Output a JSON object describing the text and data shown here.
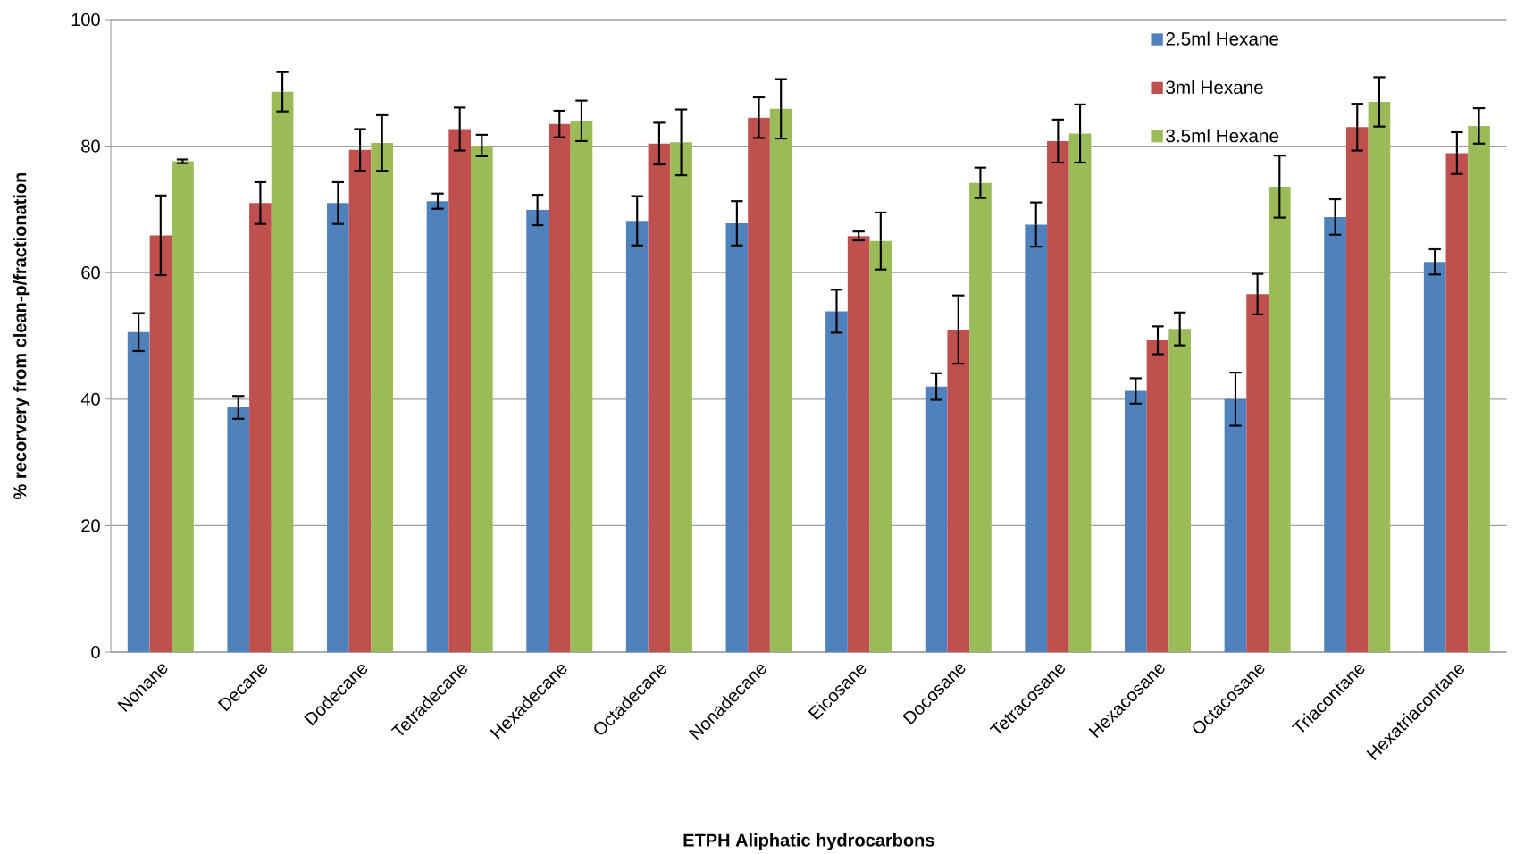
{
  "chart_data": {
    "type": "bar",
    "xlabel": "ETPH Aliphatic hydrocarbons",
    "ylabel": "% recorvery from clean-p/fractionation",
    "categories": [
      "Nonane",
      "Decane",
      "Dodecane",
      "Tetradecane",
      "Hexadecane",
      "Octadecane",
      "Nonadecane",
      "Eicosane",
      "Docosane",
      "Tetracosane",
      "Hexacosane",
      "Octacosane",
      "Triacontane",
      "Hexatriacontane"
    ],
    "series": [
      {
        "name": "2.5ml Hexane",
        "color": "#4f81bd",
        "values": [
          50.6,
          38.7,
          71.0,
          71.3,
          69.9,
          68.2,
          67.8,
          53.9,
          42.0,
          67.6,
          41.3,
          40.0,
          68.8,
          61.7
        ],
        "errors": [
          3.0,
          1.8,
          3.3,
          1.2,
          2.4,
          3.9,
          3.5,
          3.4,
          2.1,
          3.5,
          2.0,
          4.2,
          2.8,
          2.0
        ]
      },
      {
        "name": "3ml Hexane",
        "color": "#c0504d",
        "values": [
          65.9,
          71.0,
          79.4,
          82.7,
          83.5,
          80.4,
          84.5,
          65.8,
          51.0,
          80.8,
          49.3,
          56.6,
          83.0,
          78.9
        ],
        "errors": [
          6.3,
          3.3,
          3.3,
          3.4,
          2.1,
          3.3,
          3.2,
          0.7,
          5.4,
          3.4,
          2.2,
          3.2,
          3.7,
          3.3
        ]
      },
      {
        "name": "3.5ml Hexane",
        "color": "#9bbb59",
        "values": [
          77.6,
          88.6,
          80.5,
          80.1,
          84.0,
          80.6,
          85.9,
          65.0,
          74.2,
          82.0,
          51.1,
          73.6,
          87.0,
          83.2
        ],
        "errors": [
          0.3,
          3.1,
          4.4,
          1.7,
          3.2,
          5.2,
          4.7,
          4.5,
          2.4,
          4.6,
          2.6,
          4.9,
          3.9,
          2.8
        ]
      }
    ],
    "ylim": [
      0,
      100
    ],
    "yticks": [
      0,
      20,
      40,
      60,
      80,
      100
    ],
    "grid": "y",
    "legend": "top right"
  }
}
